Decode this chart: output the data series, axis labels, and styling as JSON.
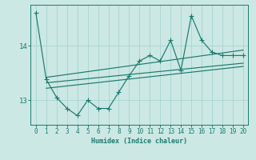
{
  "xlabel": "Humidex (Indice chaleur)",
  "ylabel": "",
  "bg_color": "#cce8e4",
  "line_color": "#1a7a6e",
  "grid_color": "#a8d4d0",
  "x_ticks": [
    0,
    1,
    2,
    3,
    4,
    5,
    6,
    7,
    8,
    9,
    10,
    11,
    12,
    13,
    14,
    15,
    16,
    17,
    18,
    19,
    20
  ],
  "ylim": [
    12.55,
    14.75
  ],
  "xlim": [
    -0.5,
    20.5
  ],
  "yticks": [
    13,
    14
  ],
  "zigzag_x": [
    0,
    1,
    2,
    3,
    4,
    5,
    6,
    7,
    8,
    9,
    10,
    11,
    12,
    13,
    14,
    15,
    16,
    17,
    18,
    19,
    20
  ],
  "zigzag_y": [
    14.6,
    13.38,
    13.05,
    12.85,
    12.72,
    13.0,
    12.85,
    12.85,
    13.15,
    13.45,
    13.72,
    13.82,
    13.72,
    14.1,
    13.55,
    14.55,
    14.1,
    13.88,
    13.82,
    13.82,
    13.82
  ],
  "line1_x": [
    1,
    20
  ],
  "line1_y": [
    13.32,
    13.68
  ],
  "line2_x": [
    1,
    20
  ],
  "line2_y": [
    13.22,
    13.62
  ],
  "line3_x": [
    1,
    20
  ],
  "line3_y": [
    13.42,
    13.92
  ]
}
